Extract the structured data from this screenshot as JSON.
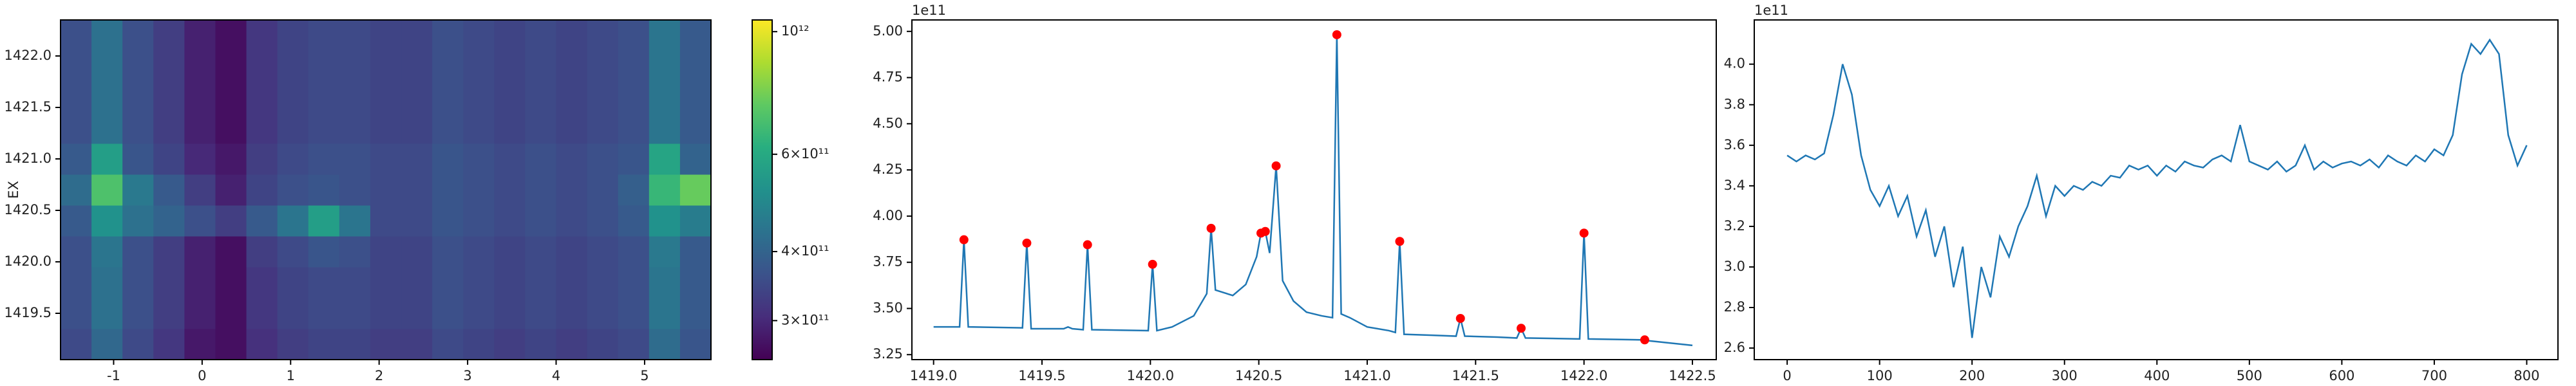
{
  "chart_data": [
    {
      "type": "heatmap",
      "ylabel": "EX",
      "xlim": [
        -1.6,
        5.75
      ],
      "ylim": [
        1419.05,
        1422.35
      ],
      "xticks": [
        -1,
        0,
        1,
        2,
        3,
        4,
        5
      ],
      "yticks": [
        1419.5,
        {
          "value": 1420,
          "label": "1420.0"
        },
        1420.5,
        {
          "value": 1421,
          "label": "1421.0"
        },
        1421.5,
        {
          "value": 1422,
          "label": "1422.0"
        }
      ],
      "x": [
        -1.425,
        -1.075,
        -0.725,
        -0.375,
        -0.025,
        0.325,
        0.675,
        1.025,
        1.375,
        1.725,
        2.075,
        2.425,
        2.775,
        3.125,
        3.475,
        3.825,
        4.175,
        4.525,
        4.875,
        5.225,
        5.575
      ],
      "y": [
        1419.2,
        1419.5,
        1419.8,
        1420.1,
        1420.4,
        1420.7,
        1421.0,
        1421.3,
        1421.6,
        1421.9,
        1422.2
      ],
      "z": [
        [
          350000000000.0,
          410000000000.0,
          350000000000.0,
          320000000000.0,
          280000000000.0,
          270000000000.0,
          310000000000.0,
          330000000000.0,
          340000000000.0,
          340000000000.0,
          330000000000.0,
          330000000000.0,
          350000000000.0,
          340000000000.0,
          330000000000.0,
          340000000000.0,
          330000000000.0,
          340000000000.0,
          350000000000.0,
          420000000000.0,
          370000000000.0
        ],
        [
          360000000000.0,
          430000000000.0,
          360000000000.0,
          330000000000.0,
          290000000000.0,
          270000000000.0,
          320000000000.0,
          340000000000.0,
          350000000000.0,
          350000000000.0,
          340000000000.0,
          340000000000.0,
          360000000000.0,
          350000000000.0,
          340000000000.0,
          350000000000.0,
          340000000000.0,
          350000000000.0,
          360000000000.0,
          440000000000.0,
          380000000000.0
        ],
        [
          360000000000.0,
          430000000000.0,
          360000000000.0,
          330000000000.0,
          290000000000.0,
          270000000000.0,
          320000000000.0,
          340000000000.0,
          350000000000.0,
          350000000000.0,
          340000000000.0,
          340000000000.0,
          360000000000.0,
          350000000000.0,
          340000000000.0,
          350000000000.0,
          340000000000.0,
          350000000000.0,
          360000000000.0,
          440000000000.0,
          380000000000.0
        ],
        [
          360000000000.0,
          440000000000.0,
          360000000000.0,
          330000000000.0,
          290000000000.0,
          270000000000.0,
          330000000000.0,
          350000000000.0,
          370000000000.0,
          360000000000.0,
          340000000000.0,
          340000000000.0,
          360000000000.0,
          350000000000.0,
          340000000000.0,
          350000000000.0,
          340000000000.0,
          350000000000.0,
          360000000000.0,
          450000000000.0,
          380000000000.0
        ],
        [
          380000000000.0,
          520000000000.0,
          430000000000.0,
          400000000000.0,
          360000000000.0,
          330000000000.0,
          380000000000.0,
          440000000000.0,
          560000000000.0,
          440000000000.0,
          350000000000.0,
          350000000000.0,
          370000000000.0,
          360000000000.0,
          350000000000.0,
          360000000000.0,
          350000000000.0,
          360000000000.0,
          380000000000.0,
          520000000000.0,
          460000000000.0
        ],
        [
          420000000000.0,
          700000000000.0,
          450000000000.0,
          380000000000.0,
          330000000000.0,
          290000000000.0,
          340000000000.0,
          360000000000.0,
          370000000000.0,
          360000000000.0,
          350000000000.0,
          350000000000.0,
          370000000000.0,
          360000000000.0,
          350000000000.0,
          360000000000.0,
          350000000000.0,
          360000000000.0,
          390000000000.0,
          650000000000.0,
          750000000000.0
        ],
        [
          380000000000.0,
          560000000000.0,
          370000000000.0,
          340000000000.0,
          300000000000.0,
          280000000000.0,
          330000000000.0,
          350000000000.0,
          360000000000.0,
          360000000000.0,
          350000000000.0,
          350000000000.0,
          370000000000.0,
          360000000000.0,
          350000000000.0,
          360000000000.0,
          350000000000.0,
          360000000000.0,
          370000000000.0,
          580000000000.0,
          400000000000.0
        ],
        [
          360000000000.0,
          430000000000.0,
          360000000000.0,
          330000000000.0,
          290000000000.0,
          270000000000.0,
          320000000000.0,
          340000000000.0,
          350000000000.0,
          350000000000.0,
          340000000000.0,
          340000000000.0,
          360000000000.0,
          350000000000.0,
          340000000000.0,
          350000000000.0,
          340000000000.0,
          350000000000.0,
          360000000000.0,
          440000000000.0,
          380000000000.0
        ],
        [
          360000000000.0,
          430000000000.0,
          360000000000.0,
          330000000000.0,
          290000000000.0,
          270000000000.0,
          320000000000.0,
          340000000000.0,
          350000000000.0,
          350000000000.0,
          340000000000.0,
          340000000000.0,
          360000000000.0,
          350000000000.0,
          340000000000.0,
          350000000000.0,
          340000000000.0,
          350000000000.0,
          360000000000.0,
          440000000000.0,
          380000000000.0
        ],
        [
          360000000000.0,
          430000000000.0,
          360000000000.0,
          330000000000.0,
          290000000000.0,
          270000000000.0,
          320000000000.0,
          340000000000.0,
          350000000000.0,
          350000000000.0,
          340000000000.0,
          340000000000.0,
          360000000000.0,
          350000000000.0,
          340000000000.0,
          350000000000.0,
          340000000000.0,
          350000000000.0,
          360000000000.0,
          440000000000.0,
          380000000000.0
        ],
        [
          360000000000.0,
          430000000000.0,
          360000000000.0,
          330000000000.0,
          290000000000.0,
          270000000000.0,
          320000000000.0,
          340000000000.0,
          350000000000.0,
          350000000000.0,
          340000000000.0,
          340000000000.0,
          360000000000.0,
          350000000000.0,
          340000000000.0,
          350000000000.0,
          340000000000.0,
          350000000000.0,
          360000000000.0,
          440000000000.0,
          380000000000.0
        ]
      ],
      "clim": [
        255000000000.0,
        1050000000000.0
      ],
      "clog": true,
      "colormap": "viridis",
      "cticks": [
        {
          "value": 300000000000.0,
          "label": "3×10¹¹"
        },
        {
          "value": 400000000000.0,
          "label": "4×10¹¹"
        },
        {
          "value": 600000000000.0,
          "label": "6×10¹¹"
        },
        {
          "value": 1000000000000.0,
          "label": "10¹²"
        }
      ]
    },
    {
      "type": "line",
      "y_offset_label": "1e11",
      "xlim": [
        1418.9,
        1422.61
      ],
      "ylim": [
        322300000000.0,
        506200000000.0
      ],
      "xticks": [
        {
          "value": 1419,
          "label": "1419.0"
        },
        1419.5,
        {
          "value": 1420,
          "label": "1420.0"
        },
        1420.5,
        {
          "value": 1421,
          "label": "1421.0"
        },
        1421.5,
        {
          "value": 1422,
          "label": "1422.0"
        },
        1422.5
      ],
      "yticks": [
        {
          "value": 325000000000.0,
          "label": "3.25"
        },
        {
          "value": 350000000000.0,
          "label": "3.50"
        },
        {
          "value": 375000000000.0,
          "label": "3.75"
        },
        {
          "value": 400000000000.0,
          "label": "4.00"
        },
        {
          "value": 425000000000.0,
          "label": "4.25"
        },
        {
          "value": 450000000000.0,
          "label": "4.50"
        },
        {
          "value": 475000000000.0,
          "label": "4.75"
        },
        {
          "value": 500000000000.0,
          "label": "5.00"
        }
      ],
      "series": [
        {
          "color": "#1f77b4",
          "marker": "none",
          "x": [
            1419.0,
            1419.12,
            1419.14,
            1419.16,
            1419.41,
            1419.43,
            1419.45,
            1419.6,
            1419.62,
            1419.64,
            1419.69,
            1419.71,
            1419.73,
            1419.99,
            1420.01,
            1420.03,
            1420.1,
            1420.2,
            1420.26,
            1420.28,
            1420.3,
            1420.38,
            1420.44,
            1420.49,
            1420.51,
            1420.53,
            1420.55,
            1420.58,
            1420.61,
            1420.66,
            1420.72,
            1420.79,
            1420.84,
            1420.86,
            1420.88,
            1420.92,
            1421.0,
            1421.1,
            1421.13,
            1421.15,
            1421.17,
            1421.3,
            1421.41,
            1421.43,
            1421.45,
            1421.6,
            1421.69,
            1421.71,
            1421.73,
            1421.98,
            1422.0,
            1422.02,
            1422.26,
            1422.28,
            1422.3,
            1422.5
          ],
          "values": [
            340000000000.0,
            340000000000.0,
            387200000000.0,
            340000000000.0,
            339500000000.0,
            385400000000.0,
            339000000000.0,
            339000000000.0,
            340000000000.0,
            339000000000.0,
            338500000000.0,
            384500000000.0,
            338500000000.0,
            338000000000.0,
            373900000000.0,
            338000000000.0,
            340000000000.0,
            346000000000.0,
            358000000000.0,
            393400000000.0,
            360000000000.0,
            357000000000.0,
            363000000000.0,
            378000000000.0,
            390800000000.0,
            391700000000.0,
            380000000000.0,
            427200000000.0,
            365000000000.0,
            354000000000.0,
            348000000000.0,
            346000000000.0,
            345000000000.0,
            498200000000.0,
            347000000000.0,
            345000000000.0,
            340000000000.0,
            338000000000.0,
            337000000000.0,
            386300000000.0,
            336000000000.0,
            335500000000.0,
            335000000000.0,
            344600000000.0,
            335000000000.0,
            334500000000.0,
            334000000000.0,
            339300000000.0,
            334000000000.0,
            333500000000.0,
            390800000000.0,
            333500000000.0,
            333000000000.0,
            333000000000.0,
            332500000000.0,
            330000000000.0
          ]
        },
        {
          "color": "#ff0000",
          "marker": "dot",
          "x": [
            1419.14,
            1419.43,
            1419.71,
            1420.01,
            1420.28,
            1420.51,
            1420.53,
            1420.58,
            1420.86,
            1421.15,
            1421.43,
            1421.71,
            1422.0,
            1422.28
          ],
          "values": [
            387200000000.0,
            385400000000.0,
            384500000000.0,
            373900000000.0,
            393400000000.0,
            390800000000.0,
            391700000000.0,
            427200000000.0,
            498200000000.0,
            386300000000.0,
            344600000000.0,
            339300000000.0,
            390800000000.0,
            333000000000.0
          ]
        }
      ]
    },
    {
      "type": "line",
      "y_offset_label": "1e11",
      "xlim": [
        -35.6,
        833.8
      ],
      "ylim": [
        254300000000.0,
        421800000000.0
      ],
      "xticks": [
        0,
        100,
        200,
        300,
        400,
        500,
        600,
        700,
        800
      ],
      "yticks": [
        {
          "value": 260000000000.0,
          "label": "2.6"
        },
        {
          "value": 280000000000.0,
          "label": "2.8"
        },
        {
          "value": 300000000000.0,
          "label": "3.0"
        },
        {
          "value": 320000000000.0,
          "label": "3.2"
        },
        {
          "value": 340000000000.0,
          "label": "3.4"
        },
        {
          "value": 360000000000.0,
          "label": "3.6"
        },
        {
          "value": 380000000000.0,
          "label": "3.8"
        },
        {
          "value": 400000000000.0,
          "label": "4.0"
        }
      ],
      "series": [
        {
          "color": "#1f77b4",
          "marker": "none",
          "x": [
            0,
            10,
            20,
            30,
            40,
            50,
            60,
            70,
            80,
            90,
            100,
            110,
            120,
            130,
            140,
            150,
            160,
            170,
            180,
            190,
            200,
            210,
            220,
            230,
            240,
            250,
            260,
            270,
            280,
            290,
            300,
            310,
            320,
            330,
            340,
            350,
            360,
            370,
            380,
            390,
            400,
            410,
            420,
            430,
            440,
            450,
            460,
            470,
            480,
            490,
            500,
            510,
            520,
            530,
            540,
            550,
            560,
            570,
            580,
            590,
            600,
            610,
            620,
            630,
            640,
            650,
            660,
            670,
            680,
            690,
            700,
            710,
            720,
            730,
            740,
            750,
            760,
            770,
            780,
            790,
            800
          ],
          "values": [
            355000000000.0,
            352000000000.0,
            355000000000.0,
            353000000000.0,
            356000000000.0,
            375000000000.0,
            400000000000.0,
            385000000000.0,
            355000000000.0,
            338000000000.0,
            330000000000.0,
            340000000000.0,
            325000000000.0,
            335000000000.0,
            315000000000.0,
            328000000000.0,
            305000000000.0,
            320000000000.0,
            290000000000.0,
            310000000000.0,
            265000000000.0,
            300000000000.0,
            285000000000.0,
            315000000000.0,
            305000000000.0,
            320000000000.0,
            330000000000.0,
            345000000000.0,
            325000000000.0,
            340000000000.0,
            335000000000.0,
            340000000000.0,
            338000000000.0,
            342000000000.0,
            340000000000.0,
            345000000000.0,
            344000000000.0,
            350000000000.0,
            348000000000.0,
            350000000000.0,
            345000000000.0,
            350000000000.0,
            347000000000.0,
            352000000000.0,
            350000000000.0,
            349000000000.0,
            353000000000.0,
            355000000000.0,
            352000000000.0,
            370000000000.0,
            352000000000.0,
            350000000000.0,
            348000000000.0,
            352000000000.0,
            347000000000.0,
            350000000000.0,
            360000000000.0,
            348000000000.0,
            352000000000.0,
            349000000000.0,
            351000000000.0,
            352000000000.0,
            350000000000.0,
            353000000000.0,
            349000000000.0,
            355000000000.0,
            352000000000.0,
            350000000000.0,
            355000000000.0,
            352000000000.0,
            358000000000.0,
            355000000000.0,
            365000000000.0,
            395000000000.0,
            410000000000.0,
            405000000000.0,
            412000000000.0,
            405000000000.0,
            365000000000.0,
            350000000000.0,
            360000000000.0
          ]
        }
      ]
    }
  ]
}
